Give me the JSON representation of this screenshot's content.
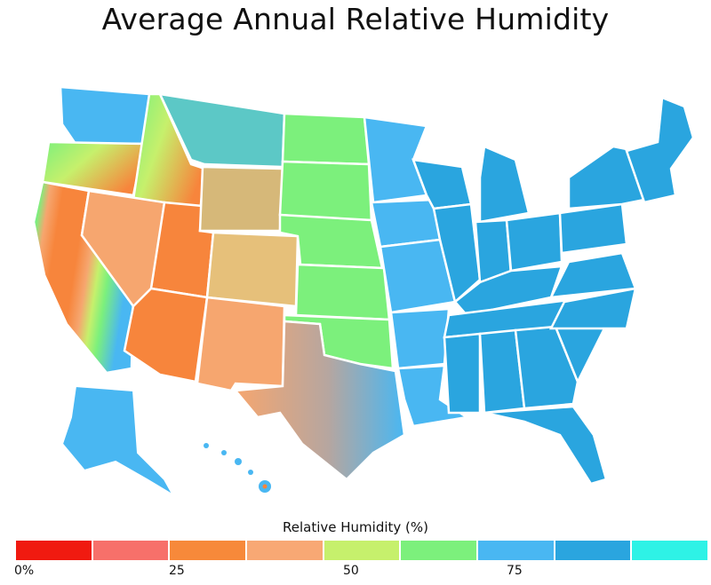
{
  "title": "Average Annual Relative Humidity",
  "legend": {
    "title": "Relative Humidity (%)",
    "colors": [
      "#f01a10",
      "#f7706a",
      "#f7893a",
      "#f8a874",
      "#c6f06c",
      "#7cf07c",
      "#49b7f2",
      "#2aa5df",
      "#2ef2e6"
    ],
    "ticks": [
      "0%",
      "25",
      "50",
      "75"
    ]
  },
  "regions": {
    "colors": {
      "arid": "#f7853c",
      "dry": "#f6a66f",
      "moderate": "#7cf07c",
      "humid": "#49b7f2",
      "very_humid": "#2aa5df"
    }
  }
}
